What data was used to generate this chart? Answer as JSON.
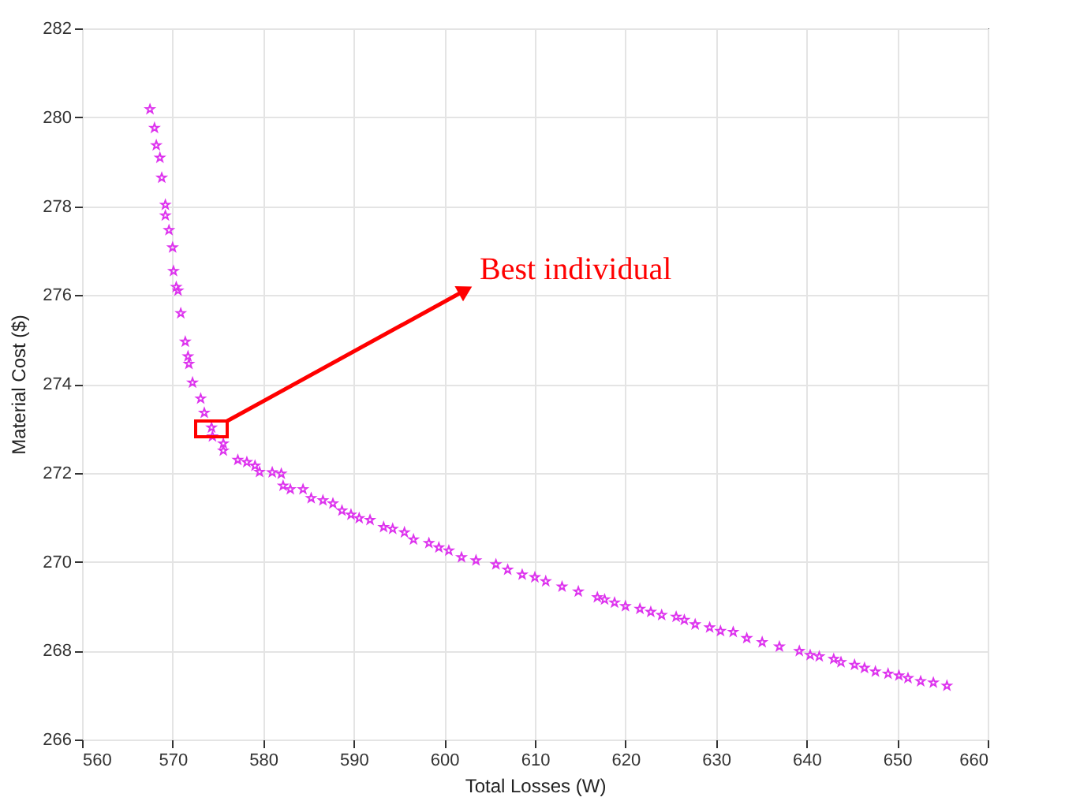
{
  "chart_data": {
    "type": "scatter",
    "xlabel": "Total Losses (W)",
    "ylabel": "Material Cost ($)",
    "marker": "star",
    "grid": true,
    "xlim": [
      560,
      660
    ],
    "xticks": [
      560,
      570,
      580,
      590,
      600,
      610,
      620,
      630,
      640,
      650,
      660
    ],
    "ylim": [
      266,
      282
    ],
    "yticks": [
      266,
      268,
      270,
      272,
      274,
      276,
      278,
      280,
      282
    ],
    "annotations": [
      "Best individual"
    ],
    "series": [
      {
        "color": "#dd33ee",
        "x": [
          567.5,
          568.0,
          568.2,
          568.6,
          568.8,
          569.2,
          569.2,
          569.6,
          570.0,
          570.1,
          570.4,
          570.6,
          570.9,
          571.4,
          571.7,
          571.8,
          572.2,
          573.1,
          573.5,
          574.3,
          574.4,
          575.6,
          575.6,
          577.2,
          578.2,
          579.1,
          579.6,
          581.0,
          582.0,
          582.2,
          583.0,
          584.4,
          585.3,
          586.6,
          587.7,
          588.7,
          589.7,
          590.6,
          591.8,
          593.3,
          594.3,
          595.6,
          596.6,
          598.3,
          599.4,
          600.5,
          601.9,
          603.5,
          605.7,
          607.0,
          608.6,
          610.0,
          611.2,
          613.0,
          614.8,
          616.9,
          617.7,
          618.8,
          620.0,
          621.6,
          622.8,
          624.0,
          625.6,
          626.5,
          627.7,
          629.3,
          630.5,
          631.9,
          633.4,
          635.1,
          637.0,
          639.2,
          640.4,
          641.4,
          643.0,
          643.8,
          645.3,
          646.4,
          647.6,
          649.0,
          650.2,
          651.2,
          652.6,
          654.0,
          655.5
        ],
        "values": [
          280.18,
          279.76,
          279.37,
          279.09,
          278.64,
          278.03,
          277.79,
          277.46,
          277.07,
          276.54,
          276.18,
          276.1,
          275.59,
          274.95,
          274.62,
          274.45,
          274.03,
          273.67,
          273.35,
          273.02,
          272.82,
          272.66,
          272.5,
          272.29,
          272.24,
          272.16,
          272.02,
          272.01,
          271.98,
          271.71,
          271.63,
          271.63,
          271.43,
          271.38,
          271.31,
          271.15,
          271.06,
          270.98,
          270.94,
          270.78,
          270.74,
          270.66,
          270.5,
          270.42,
          270.32,
          270.25,
          270.1,
          270.03,
          269.94,
          269.82,
          269.71,
          269.65,
          269.56,
          269.44,
          269.33,
          269.2,
          269.15,
          269.08,
          269.0,
          268.94,
          268.87,
          268.8,
          268.76,
          268.69,
          268.59,
          268.52,
          268.44,
          268.42,
          268.28,
          268.19,
          268.09,
          267.99,
          267.9,
          267.87,
          267.81,
          267.74,
          267.68,
          267.61,
          267.53,
          267.48,
          267.44,
          267.38,
          267.31,
          267.28,
          267.21
        ]
      }
    ]
  }
}
